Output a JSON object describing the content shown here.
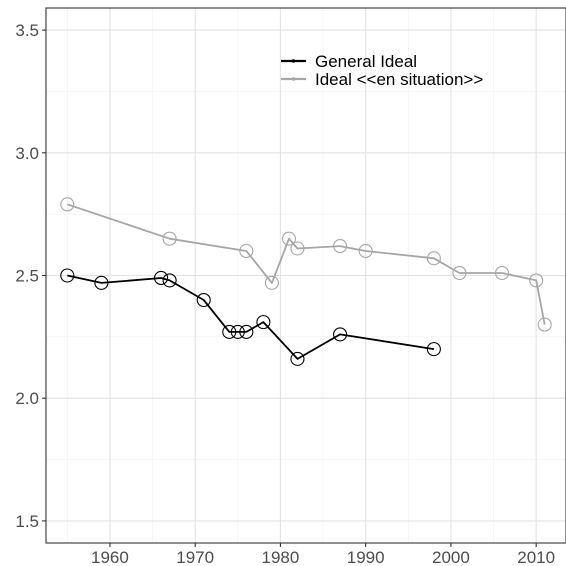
{
  "chart_data": {
    "type": "line",
    "title": "",
    "xlabel": "",
    "ylabel": "",
    "xlim": [
      1952.5,
      2013.5
    ],
    "ylim": [
      1.41,
      3.59
    ],
    "x_ticks": [
      1960,
      1970,
      1980,
      1990,
      2000,
      2010
    ],
    "y_ticks": [
      1.5,
      2.0,
      2.5,
      3.0,
      3.5
    ],
    "x_tick_labels": [
      "1960",
      "1970",
      "1980",
      "1990",
      "2000",
      "2010"
    ],
    "y_tick_labels": [
      "1.5",
      "2.0",
      "2.5",
      "3.0",
      "3.5"
    ],
    "grid": true,
    "legend_position": "top-right",
    "series": [
      {
        "name": "General Ideal",
        "color": "#000000",
        "x": [
          1955,
          1959,
          1966,
          1967,
          1971,
          1974,
          1975,
          1976,
          1978,
          1982,
          1987,
          1998
        ],
        "y": [
          2.5,
          2.47,
          2.49,
          2.48,
          2.4,
          2.27,
          2.27,
          2.27,
          2.31,
          2.16,
          2.26,
          2.2
        ]
      },
      {
        "name": "Ideal <<en situation>>",
        "color": "#a6a6a6",
        "x": [
          1955,
          1967,
          1976,
          1979,
          1981,
          1982,
          1987,
          1990,
          1998,
          2001,
          2006,
          2010,
          2011
        ],
        "y": [
          2.79,
          2.65,
          2.6,
          2.47,
          2.65,
          2.61,
          2.62,
          2.6,
          2.57,
          2.51,
          2.51,
          2.48,
          2.3
        ]
      }
    ]
  }
}
